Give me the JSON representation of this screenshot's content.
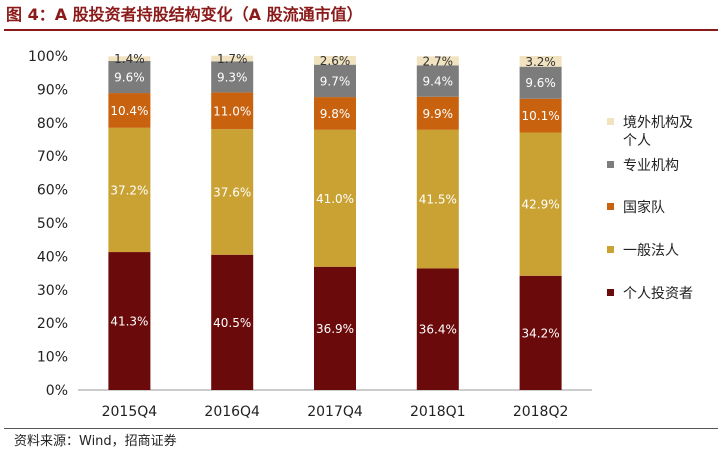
{
  "figure": {
    "title": "图 4：A 股投资者持股结构变化（A 股流通市值）",
    "source": "资料来源：Wind，招商证券"
  },
  "chart_data": {
    "type": "bar",
    "stacked": true,
    "categories": [
      "2015Q4",
      "2016Q4",
      "2017Q4",
      "2018Q1",
      "2018Q2"
    ],
    "ylim": [
      0,
      100
    ],
    "yticks": [
      "0%",
      "10%",
      "20%",
      "30%",
      "40%",
      "50%",
      "60%",
      "70%",
      "80%",
      "90%",
      "100%"
    ],
    "grid": false,
    "legend_position": "right",
    "series": [
      {
        "name": "个人投资者",
        "color": "#6b0a0a",
        "label_color": "#ffffff",
        "values": [
          41.3,
          40.5,
          36.9,
          36.4,
          34.2
        ],
        "labels": [
          "41.3%",
          "40.5%",
          "36.9%",
          "36.4%",
          "34.2%"
        ]
      },
      {
        "name": "一般法人",
        "color": "#c9a233",
        "label_color": "#ffffff",
        "values": [
          37.2,
          37.6,
          41.0,
          41.5,
          42.9
        ],
        "labels": [
          "37.2%",
          "37.6%",
          "41.0%",
          "41.5%",
          "42.9%"
        ]
      },
      {
        "name": "国家队",
        "color": "#c8620e",
        "label_color": "#ffffff",
        "values": [
          10.4,
          11.0,
          9.8,
          9.9,
          10.1
        ],
        "labels": [
          "10.4%",
          "11.0%",
          "9.8%",
          "9.9%",
          "10.1%"
        ]
      },
      {
        "name": "专业机构",
        "color": "#7c7c7c",
        "label_color": "#ffffff",
        "values": [
          9.6,
          9.3,
          9.7,
          9.4,
          9.6
        ],
        "labels": [
          "9.6%",
          "9.3%",
          "9.7%",
          "9.4%",
          "9.6%"
        ]
      },
      {
        "name": "境外机构及个人",
        "color": "#f1e3c0",
        "label_color": "#333333",
        "values": [
          1.4,
          1.7,
          2.6,
          2.7,
          3.2
        ],
        "labels": [
          "1.4%",
          "1.7%",
          "2.6%",
          "2.7%",
          "3.2%"
        ]
      }
    ],
    "legend_order": [
      "境外机构及个人",
      "专业机构",
      "国家队",
      "一般法人",
      "个人投资者"
    ],
    "legend_lines": [
      [
        "境外机构及",
        "个人"
      ],
      [
        "专业机构"
      ],
      [
        "国家队"
      ],
      [
        "一般法人"
      ],
      [
        "个人投资者"
      ]
    ]
  }
}
